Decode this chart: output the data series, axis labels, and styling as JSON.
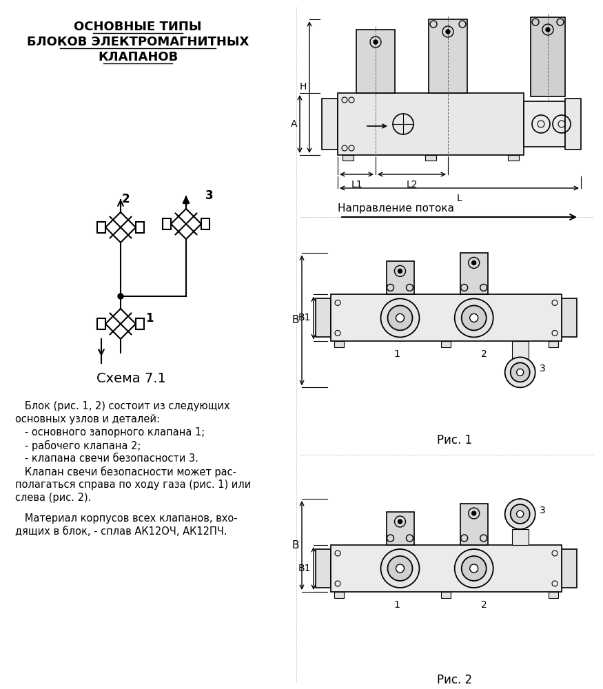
{
  "title_line1": "ОСНОВНЫЕ ТИПЫ",
  "title_line2": "БЛОКОВ ЭЛЕКТРОМАГНИТНЫХ",
  "title_line3": "КЛАПАНОВ",
  "schema_label": "Схема 7.1",
  "fig1_label": "Рис. 1",
  "fig2_label": "Рис. 2",
  "direction_label": "Направление потока",
  "text_block": [
    "   Блок (рис. 1, 2) состоит из следующих",
    "основных узлов и деталей:",
    "   - основного запорного клапана 1;",
    "   - рабочего клапана 2;",
    "   - клапана свечи безопасности 3.",
    "   Клапан свечи безопасности может рас-",
    "полагаться справа по ходу газа (рис. 1) или",
    "слева (рис. 2)."
  ],
  "text_block2": [
    "   Материал корпусов всех клапанов, вхо-",
    "дящих в блок, - сплав АК12ОЧ, АК12ПЧ."
  ],
  "bg_color": "#ffffff",
  "line_color": "#000000"
}
